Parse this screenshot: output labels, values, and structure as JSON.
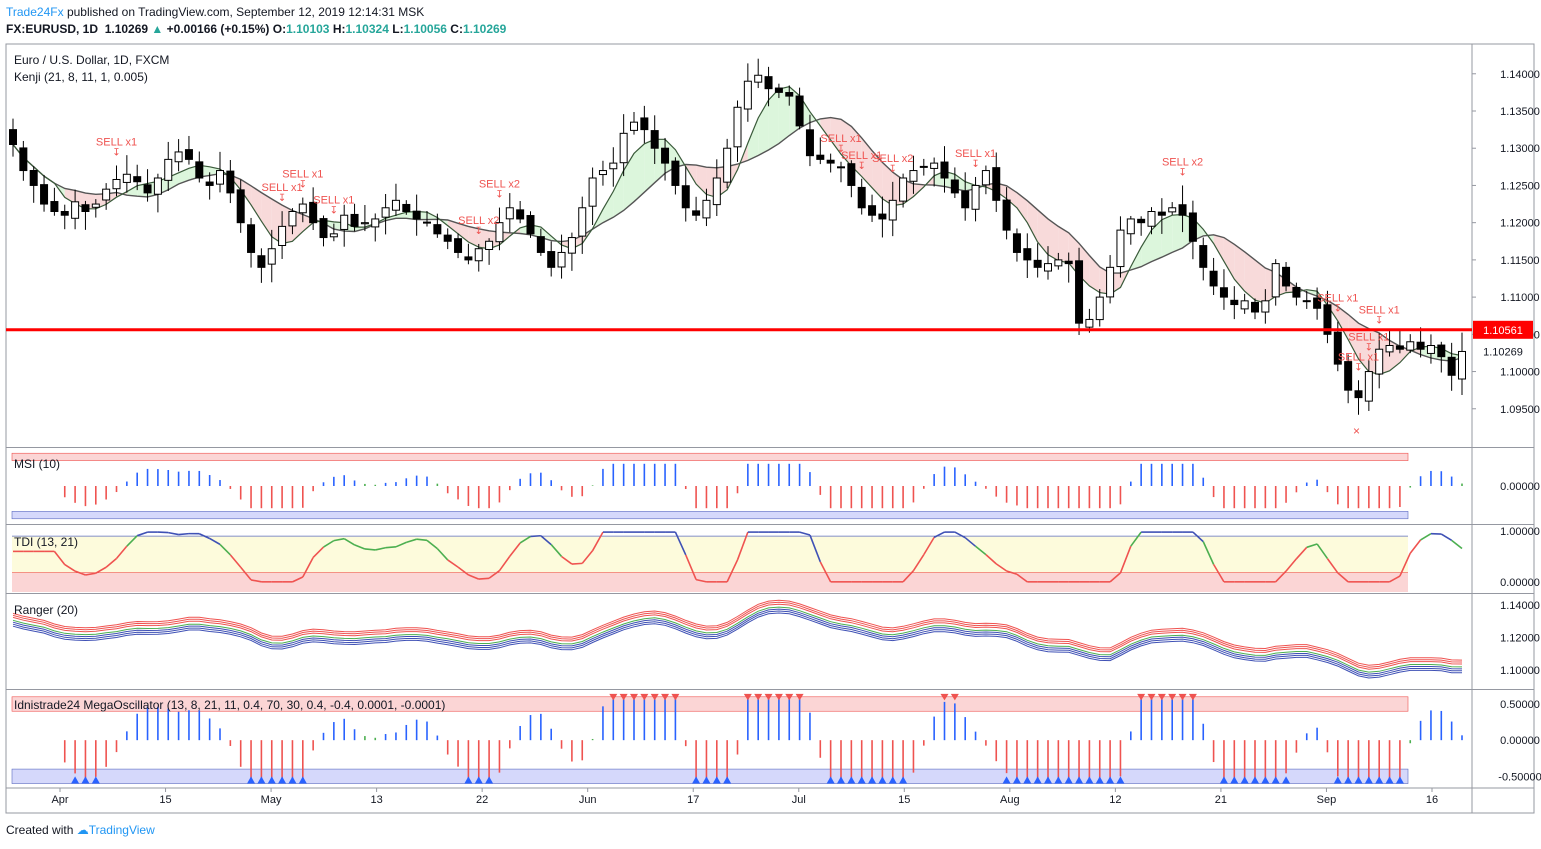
{
  "header": {
    "brand": "Trade24Fx",
    "published_text": "published on TradingView.com, September 12, 2019 12:14:31 MSK",
    "symbol": "FX:EURUSD, 1D",
    "last_price": "1.10269",
    "arrow": "▲",
    "change": "+0.00166 (+0.15%)",
    "open_label": "O:",
    "open": "1.10103",
    "high_label": "H:",
    "high": "1.10324",
    "low_label": "L:",
    "low": "1.10056",
    "close_label": "C:",
    "close": "1.10269"
  },
  "footer": {
    "created_with": "Created with",
    "brand": "TradingView"
  },
  "colors": {
    "up_candle": "#ffffff",
    "down_candle": "#000000",
    "hline": "#ff0000",
    "sell": "#ef5350",
    "buy": "#2962ff",
    "brand": "#2196f3"
  },
  "chart_data": [
    {
      "type": "candlestick",
      "title": "Euro / U.S. Dollar, 1D, FXCM",
      "indicator_label": "Kenji (21, 8, 11, 1, 0.005)",
      "y_ticks": [
        "1.14000",
        "1.13500",
        "1.13000",
        "1.12500",
        "1.12000",
        "1.11500",
        "1.11000",
        "1.10500",
        "1.10000",
        "1.09500",
        "1.09000"
      ],
      "ylim": [
        1.09,
        1.144
      ],
      "x_ticks": [
        "Apr",
        "15",
        "May",
        "13",
        "22",
        "Jun",
        "17",
        "Jul",
        "15",
        "Aug",
        "12",
        "21",
        "Sep",
        "16"
      ],
      "horizontal_line": {
        "value": 1.10561,
        "label": "1.10561"
      },
      "last_value_label": "1.10269",
      "closes": [
        1.1305,
        1.127,
        1.125,
        1.1225,
        1.1215,
        1.121,
        1.1228,
        1.1215,
        1.1225,
        1.1245,
        1.1258,
        1.1265,
        1.1255,
        1.124,
        1.126,
        1.1285,
        1.1295,
        1.1285,
        1.126,
        1.125,
        1.127,
        1.124,
        1.12,
        1.116,
        1.114,
        1.1165,
        1.1195,
        1.1215,
        1.1225,
        1.12,
        1.118,
        1.1185,
        1.121,
        1.1195,
        1.12,
        1.1205,
        1.122,
        1.123,
        1.1215,
        1.1205,
        1.12,
        1.1185,
        1.1175,
        1.116,
        1.115,
        1.1165,
        1.1175,
        1.12,
        1.122,
        1.1205,
        1.1185,
        1.116,
        1.114,
        1.116,
        1.118,
        1.122,
        1.126,
        1.127,
        1.128,
        1.132,
        1.1335,
        1.1325,
        1.13,
        1.128,
        1.125,
        1.122,
        1.121,
        1.123,
        1.126,
        1.13,
        1.1355,
        1.139,
        1.1398,
        1.138,
        1.1375,
        1.137,
        1.133,
        1.129,
        1.1285,
        1.128,
        1.1275,
        1.125,
        1.122,
        1.121,
        1.1205,
        1.123,
        1.126,
        1.127,
        1.1275,
        1.128,
        1.126,
        1.124,
        1.122,
        1.125,
        1.127,
        1.123,
        1.119,
        1.116,
        1.115,
        1.114,
        1.1145,
        1.115,
        1.1145,
        1.1065,
        1.107,
        1.11,
        1.114,
        1.119,
        1.1205,
        1.12,
        1.1215,
        1.121,
        1.122,
        1.121,
        1.1175,
        1.114,
        1.1115,
        1.11,
        1.109,
        1.1095,
        1.108,
        1.1095,
        1.1145,
        1.1115,
        1.11,
        1.1095,
        1.1085,
        1.105,
        1.101,
        1.0975,
        1.0965,
        1.1,
        1.103,
        1.1035,
        1.103,
        1.104,
        1.103,
        1.1035,
        1.102,
        1.0995,
        1.1027
      ],
      "kenji_line": {
        "start": 1.13,
        "min": 1.123,
        "mid": 1.127,
        "end": 1.1055
      },
      "sell_signals": [
        "SELL x1",
        "SELL x1",
        "SELL x1",
        "SELL x1",
        "SELL x2",
        "SELL x2",
        "SELL x1",
        "SELL x1",
        "SELL x2",
        "SELL x1",
        "SELL x2",
        "SELL x1",
        "SELL x1",
        "SELL x1",
        "SELL x1"
      ],
      "sell_signal_bars": [
        10,
        26,
        28,
        31,
        45,
        47,
        80,
        82,
        85,
        93,
        113,
        128,
        130,
        131,
        132
      ]
    },
    {
      "type": "histogram",
      "title": "MSI (10)",
      "y_ticks": [
        "0.00000"
      ],
      "ylim": [
        -0.7,
        0.7
      ]
    },
    {
      "type": "line",
      "title": "TDI (13, 21)",
      "y_ticks": [
        "1.00000",
        "0.00000"
      ],
      "ylim": [
        -0.2,
        1.1
      ]
    },
    {
      "type": "line",
      "title": "Ranger (20)",
      "y_ticks": [
        "1.14000",
        "1.12000",
        "1.10000"
      ],
      "ylim": [
        1.089,
        1.146
      ]
    },
    {
      "type": "histogram",
      "title": "Idnistrade24 MegaOscillator (13, 8, 21, 11, 0.4, 70, 30, 0.4, -0.4, 0.0001, -0.0001)",
      "y_ticks": [
        "0.50000",
        "0.00000",
        "-0.50000"
      ],
      "ylim": [
        -0.62,
        0.68
      ]
    }
  ]
}
